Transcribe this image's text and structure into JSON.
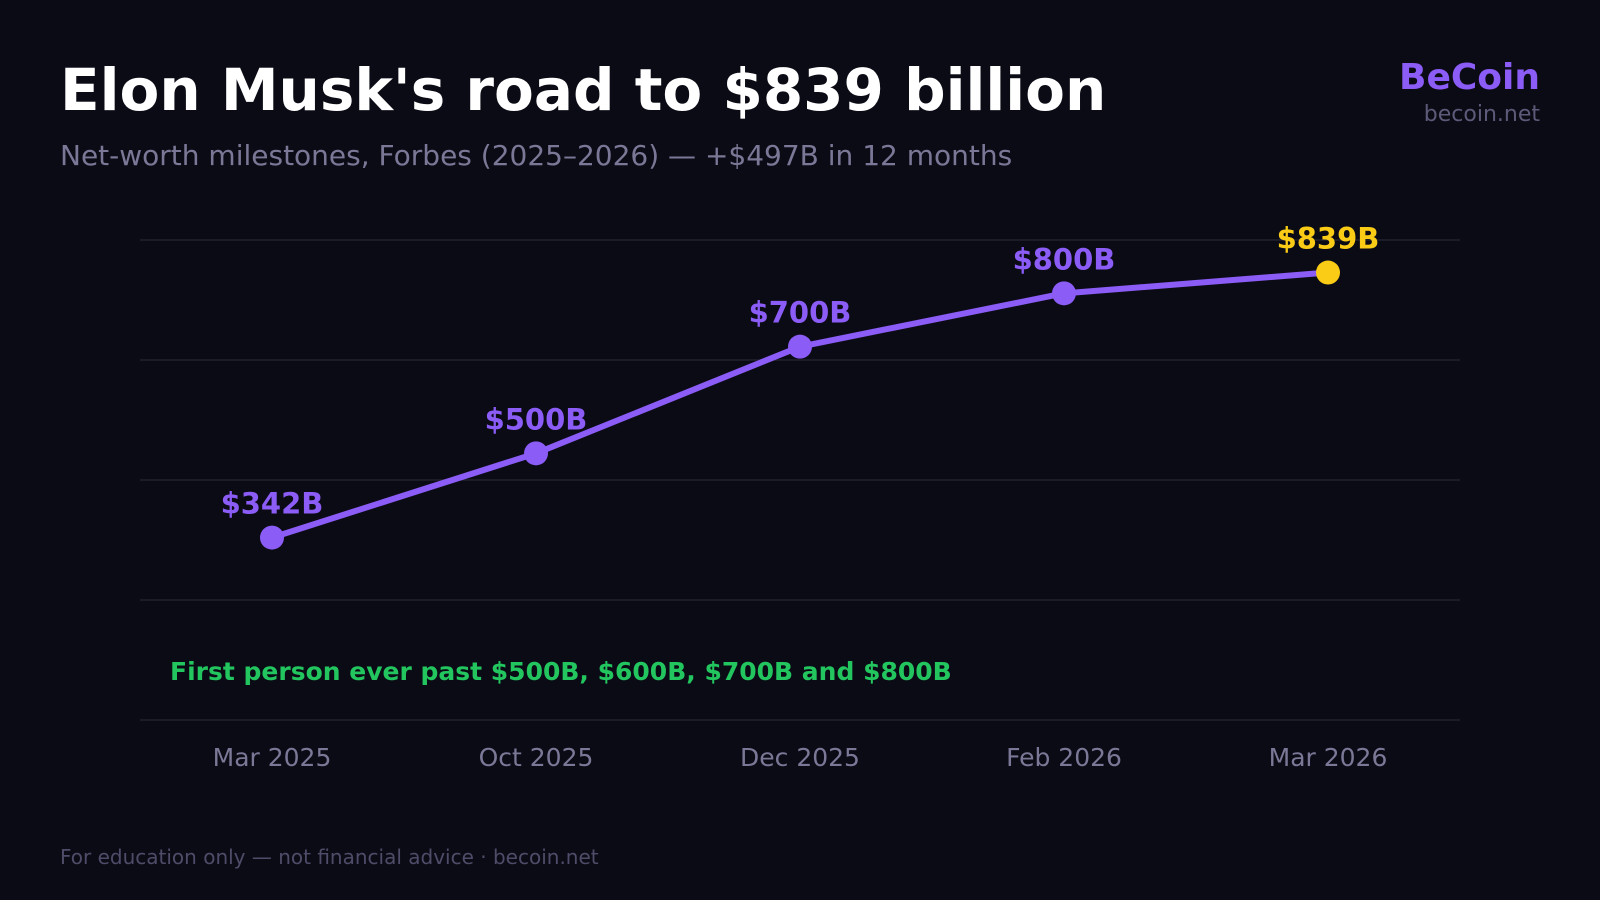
{
  "header": {
    "title": "Elon Musk's road to $839 billion",
    "subtitle": "Net-worth milestones, Forbes (2025–2026) — +$497B in 12 months"
  },
  "brand": {
    "name": "BeCoin",
    "url": "becoin.net"
  },
  "footer": {
    "text": "For education only — not financial advice · becoin.net"
  },
  "colors": {
    "background": "#0b0b16",
    "line": "#8b5cf6",
    "highlight": "#facc15",
    "annotation": "#22c55e",
    "gridline": "#22212f",
    "tick_label": "#7a7896"
  },
  "chart_data": {
    "type": "line",
    "title": "Elon Musk's road to $839 billion",
    "xlabel": "",
    "ylabel": "",
    "categories": [
      "Mar 2025",
      "Oct 2025",
      "Dec 2025",
      "Feb 2026",
      "Mar 2026"
    ],
    "series": [
      {
        "values": [
          342,
          500,
          700,
          800,
          839
        ],
        "labels": [
          "$342B",
          "$500B",
          "$700B",
          "$800B",
          "$839B"
        ]
      }
    ],
    "highlight_index": 4,
    "ylim": [
      0,
      900
    ],
    "y_gridlines": [
      0,
      225,
      450,
      675,
      900
    ],
    "grid": true,
    "annotation": "First person ever past $500B, $600B, $700B and $800B"
  }
}
